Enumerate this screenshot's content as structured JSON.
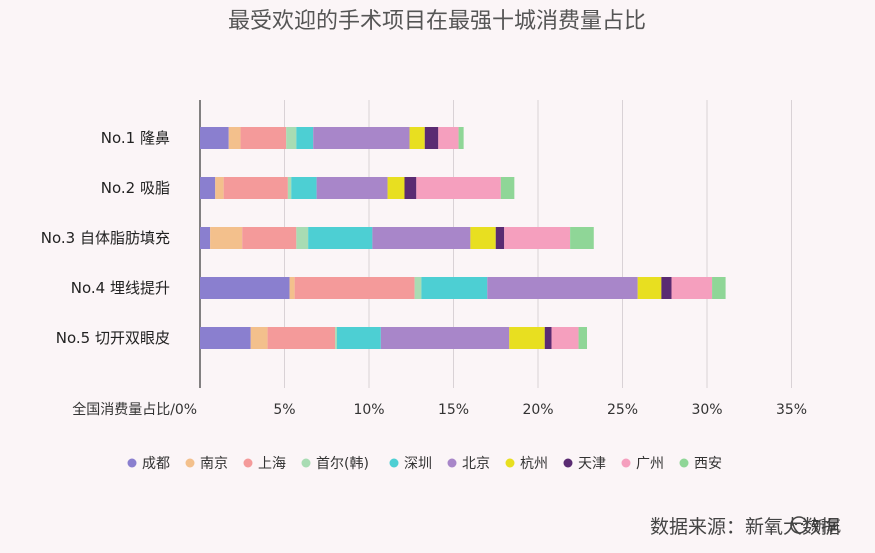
{
  "chart_data": {
    "type": "bar",
    "stacked": true,
    "orientation": "horizontal",
    "title": "最受欢迎的手术项目在最强十城消费量占比",
    "xlabel": "全国消费量占比/",
    "xlim": [
      0,
      35
    ],
    "xticks": [
      "0%",
      "5%",
      "10%",
      "15%",
      "20%",
      "25%",
      "30%",
      "35%"
    ],
    "grid": true,
    "legend_position": "bottom",
    "categories": [
      "No.1 隆鼻",
      "No.2 吸脂",
      "No.3 自体脂肪填充",
      "No.4 埋线提升",
      "No.5 切开双眼皮"
    ],
    "series": [
      {
        "name": "成都",
        "color": "#8a7fcf",
        "values": [
          1.7,
          0.9,
          0.6,
          5.3,
          3.0
        ]
      },
      {
        "name": "南京",
        "color": "#f3c08c",
        "values": [
          0.7,
          0.5,
          1.9,
          0.3,
          1.0
        ]
      },
      {
        "name": "上海",
        "color": "#f49a9a",
        "values": [
          2.7,
          3.8,
          3.2,
          7.1,
          4.0
        ]
      },
      {
        "name": "首尔(韩)",
        "color": "#a8dcb3",
        "values": [
          0.6,
          0.2,
          0.7,
          0.4,
          0.1
        ]
      },
      {
        "name": "深圳",
        "color": "#4dcfd3",
        "values": [
          1.0,
          1.5,
          3.8,
          3.9,
          2.6
        ]
      },
      {
        "name": "北京",
        "color": "#a886c9",
        "values": [
          5.7,
          4.2,
          5.8,
          8.9,
          7.6
        ]
      },
      {
        "name": "杭州",
        "color": "#e8df20",
        "values": [
          0.9,
          1.0,
          1.5,
          1.4,
          2.1
        ]
      },
      {
        "name": "天津",
        "color": "#5a2b72",
        "values": [
          0.8,
          0.7,
          0.5,
          0.6,
          0.4
        ]
      },
      {
        "name": "广州",
        "color": "#f59fbe",
        "values": [
          1.2,
          5.0,
          3.9,
          2.4,
          1.6
        ]
      },
      {
        "name": "西安",
        "color": "#8fd697",
        "values": [
          0.3,
          0.8,
          1.4,
          0.8,
          0.5
        ]
      }
    ]
  },
  "source": "数据来源：新氧大数据",
  "watermark_text": "新氧"
}
